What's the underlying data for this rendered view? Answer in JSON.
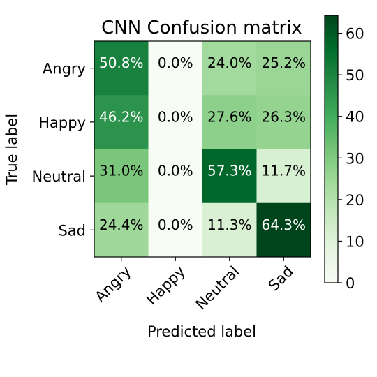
{
  "chart_data": {
    "type": "heatmap",
    "title": "CNN Confusion matrix",
    "xlabel": "Predicted label",
    "ylabel": "True label",
    "x_categories": [
      "Angry",
      "Happy",
      "Neutral",
      "Sad"
    ],
    "y_categories": [
      "Angry",
      "Happy",
      "Neutral",
      "Sad"
    ],
    "values": [
      [
        50.8,
        0.0,
        24.0,
        25.2
      ],
      [
        46.2,
        0.0,
        27.6,
        26.3
      ],
      [
        31.0,
        0.0,
        57.3,
        11.7
      ],
      [
        24.4,
        0.0,
        11.3,
        64.3
      ]
    ],
    "cell_labels": [
      [
        "50.8%",
        "0.0%",
        "24.0%",
        "25.2%"
      ],
      [
        "46.2%",
        "0.0%",
        "27.6%",
        "26.3%"
      ],
      [
        "31.0%",
        "0.0%",
        "57.3%",
        "11.7%"
      ],
      [
        "24.4%",
        "0.0%",
        "11.3%",
        "64.3%"
      ]
    ],
    "colormap": "Greens",
    "color_range": [
      0,
      64.3
    ],
    "colorbar_ticks": [
      "0",
      "10",
      "20",
      "30",
      "40",
      "50",
      "60"
    ],
    "colorbar_tick_values": [
      0,
      10,
      20,
      30,
      40,
      50,
      60
    ],
    "grid": false
  }
}
